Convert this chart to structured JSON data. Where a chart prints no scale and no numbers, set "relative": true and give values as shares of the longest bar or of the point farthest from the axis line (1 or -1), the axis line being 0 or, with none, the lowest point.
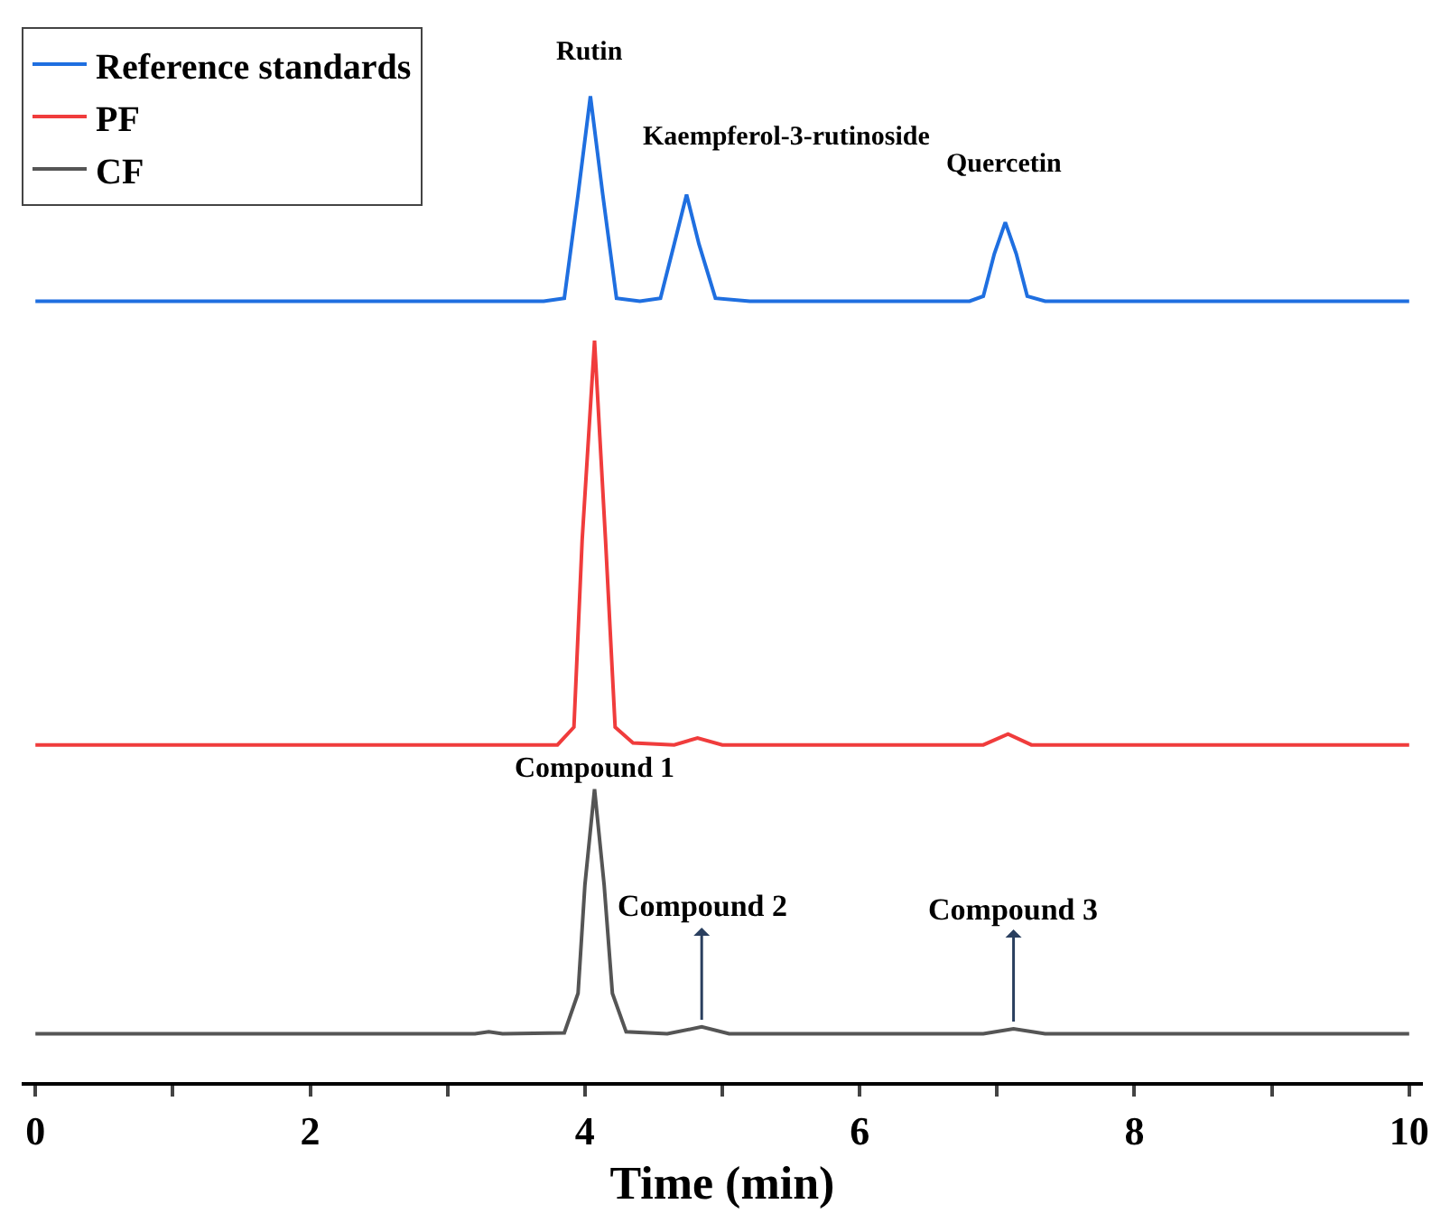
{
  "chart_data": {
    "type": "line",
    "relative": true,
    "xlabel": "Time (min)",
    "xlim": [
      -0.1,
      10.1
    ],
    "xticks": [
      0,
      {
        "value": 1,
        "label": null
      },
      2,
      {
        "value": 3,
        "label": null
      },
      4,
      {
        "value": 5,
        "label": null
      },
      6,
      {
        "value": 7,
        "label": null
      },
      8,
      {
        "value": 9,
        "label": null
      },
      10
    ],
    "tick_labels": "x",
    "legend": "top left",
    "marker": "none",
    "line_style": "solid",
    "series": [
      {
        "name": "Reference standards",
        "color": "#1f6fe0",
        "x": [
          0,
          3.7,
          3.85,
          3.95,
          4.04,
          4.13,
          4.23,
          4.4,
          4.55,
          4.65,
          4.74,
          4.83,
          4.95,
          5.2,
          6.8,
          6.9,
          6.98,
          7.06,
          7.14,
          7.22,
          7.35,
          10
        ],
        "values": [
          0.792,
          0.792,
          0.795,
          0.9,
          1.0,
          0.9,
          0.795,
          0.792,
          0.795,
          0.85,
          0.9,
          0.85,
          0.795,
          0.792,
          0.792,
          0.797,
          0.84,
          0.872,
          0.84,
          0.797,
          0.792,
          0.792
        ]
      },
      {
        "name": "PF",
        "color": "#f03c3c",
        "x": [
          0,
          3.8,
          3.92,
          3.98,
          4.07,
          4.15,
          4.22,
          4.35,
          4.65,
          4.82,
          5.0,
          6.9,
          7.08,
          7.25,
          10
        ],
        "values": [
          0.342,
          0.342,
          0.36,
          0.55,
          0.752,
          0.55,
          0.36,
          0.344,
          0.342,
          0.349,
          0.342,
          0.342,
          0.353,
          0.342,
          0.342
        ]
      },
      {
        "name": "CF",
        "color": "#555555",
        "x": [
          0,
          3.2,
          3.3,
          3.4,
          3.85,
          3.95,
          4.0,
          4.07,
          4.14,
          4.2,
          4.3,
          4.6,
          4.85,
          5.05,
          6.9,
          7.12,
          7.35,
          10
        ],
        "values": [
          0.049,
          0.049,
          0.051,
          0.049,
          0.05,
          0.09,
          0.2,
          0.297,
          0.2,
          0.09,
          0.051,
          0.049,
          0.056,
          0.049,
          0.049,
          0.054,
          0.049,
          0.049
        ]
      }
    ],
    "annotations": [
      {
        "text": "Rutin",
        "x": 4.04,
        "y": 1.0
      },
      {
        "text": "Kaempferol-3-rutinoside",
        "x": 4.74,
        "y": 0.9
      },
      {
        "text": "Quercetin",
        "x": 7.06,
        "y": 0.872
      },
      {
        "text": "Compound 1",
        "x": 4.07,
        "y": 0.297
      },
      {
        "text": "Compound 2",
        "x": 4.85,
        "y": 0.056
      },
      {
        "text": "Compound 3",
        "x": 7.12,
        "y": 0.054
      }
    ]
  }
}
